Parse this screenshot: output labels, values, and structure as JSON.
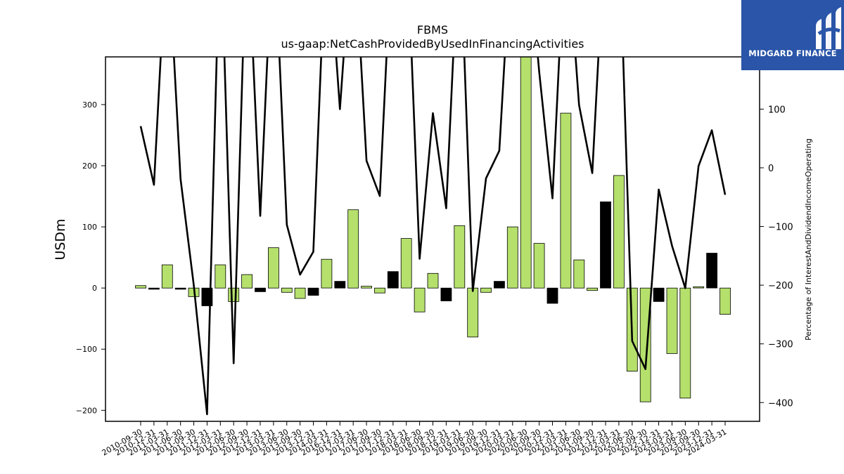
{
  "brand": {
    "name": "MIDGARD FINANCE",
    "bg_color": "#2a55a8"
  },
  "chart_data": {
    "type": "bar+line",
    "title": "FBMS",
    "subtitle": "us-gaap:NetCashProvidedByUsedInFinancingActivities",
    "ylabel": "USDm",
    "y2label": "Percentage of InterestAndDividendIncomeOperating",
    "ylim": [
      -218,
      378
    ],
    "y2lim": [
      -432,
      189
    ],
    "yticks": [
      -200,
      -100,
      0,
      100,
      200,
      300
    ],
    "y2ticks": [
      -400,
      -300,
      -200,
      -100,
      0,
      100
    ],
    "colors": {
      "green": "#b5e06c",
      "black": "#000000",
      "line": "#000000"
    },
    "categories": [
      "2010-09-30",
      "2010-12-31",
      "2011-03-31",
      "2011-06-30",
      "2011-09-30",
      "2011-12-31",
      "2012-03-31",
      "2012-06-30",
      "2012-09-30",
      "2012-12-31",
      "2013-03-31",
      "2013-06-30",
      "2013-09-30",
      "2013-12-31",
      "2014-03-31",
      "2016-12-31",
      "2017-03-31",
      "2017-06-30",
      "2017-09-30",
      "2017-12-31",
      "2018-03-31",
      "2018-06-30",
      "2018-09-30",
      "2018-12-31",
      "2019-03-31",
      "2019-06-30",
      "2019-09-30",
      "2019-12-31",
      "2020-03-31",
      "2020-06-30",
      "2020-09-30",
      "2020-12-31",
      "2021-03-31",
      "2021-06-30",
      "2021-09-30",
      "2021-12-31",
      "2022-03-31",
      "2022-06-30",
      "2022-09-30",
      "2022-12-31",
      "2023-03-31",
      "2023-06-30",
      "2023-09-30",
      "2023-12-31",
      "2024-03-31"
    ],
    "bar_values": [
      4,
      -2,
      38,
      -2,
      -14,
      -29,
      38,
      -22,
      22,
      -6,
      66,
      -7,
      -17,
      -12,
      47,
      11,
      128,
      3,
      -8,
      27,
      81,
      -39,
      24,
      -21,
      102,
      -80,
      -7,
      11,
      100,
      380,
      73,
      -25,
      286,
      46,
      -4,
      141,
      184,
      -136,
      -186,
      -22,
      -107,
      -180,
      2,
      57,
      -43
    ],
    "bar_colors": [
      "green",
      "black",
      "green",
      "black",
      "green",
      "black",
      "green",
      "green",
      "green",
      "black",
      "green",
      "green",
      "green",
      "black",
      "green",
      "black",
      "green",
      "green",
      "green",
      "black",
      "green",
      "green",
      "green",
      "black",
      "green",
      "green",
      "green",
      "black",
      "green",
      "green",
      "green",
      "black",
      "green",
      "green",
      "green",
      "black",
      "green",
      "green",
      "green",
      "black",
      "green",
      "green",
      "green",
      "black",
      "green"
    ],
    "line_values": [
      71,
      -29,
      400,
      -19,
      -200,
      -420,
      420,
      -333,
      420,
      -82,
      420,
      -97,
      -182,
      -143,
      420,
      100,
      420,
      12,
      -48,
      420,
      420,
      -155,
      93,
      -69,
      420,
      -210,
      -18,
      29,
      420,
      420,
      164,
      -52,
      420,
      107,
      -9,
      420,
      420,
      -295,
      -343,
      -37,
      -133,
      -205,
      3,
      64,
      -46
    ]
  }
}
